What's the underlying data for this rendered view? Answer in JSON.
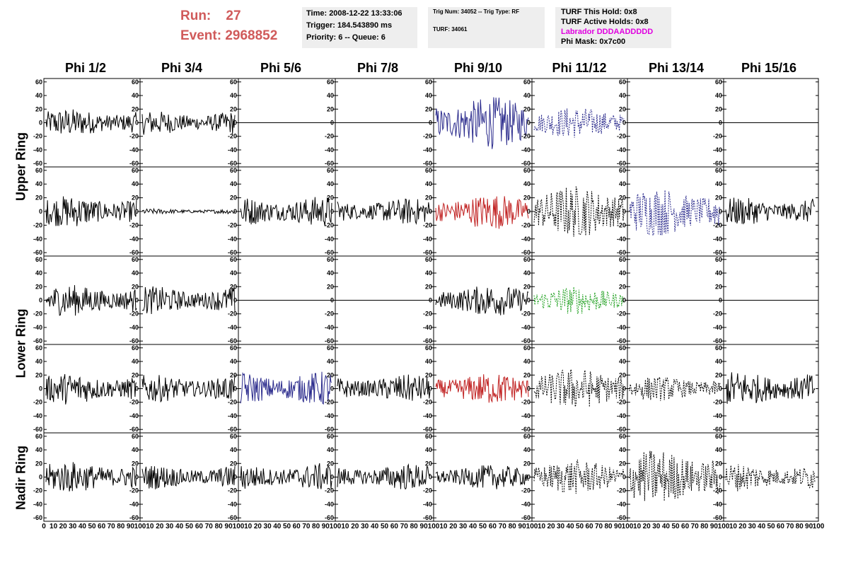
{
  "header": {
    "run_text": "Run:    27",
    "event_text": "Event: 2968852"
  },
  "info": {
    "time": "Time: 2008-12-22 13:33:06",
    "trigger": "Trigger: 184.543890 ms",
    "priority": "Priority: 6 -- Queue: 6",
    "trig_num": "Trig Num: 34052 -- Trig Type: RF",
    "turf": "TURF: 34061",
    "turf_this_hold": "TURF This Hold: 0x8",
    "turf_active_holds": "TURF Active Holds: 0x8",
    "labrador": "Labrador DDDAADDDDD",
    "phi_mask": "Phi Mask: 0x7c00"
  },
  "columns": [
    "Phi 1/2",
    "Phi 3/4",
    "Phi 5/6",
    "Phi 7/8",
    "Phi 9/10",
    "Phi 11/12",
    "Phi 13/14",
    "Phi 15/16"
  ],
  "rows": [
    "Upper Ring",
    "Lower Ring",
    "Nadir Ring"
  ],
  "axis": {
    "y_ticks": [
      "60",
      "40",
      "20",
      "0",
      "-20",
      "-40",
      "-60"
    ],
    "x_ticks_first": "0  10 20 30 40 50 60 70 80 90 100",
    "x_ticks": "10 20 30 40 50 60 70 80 90 100"
  },
  "colors": {
    "black": "#000000",
    "blue": "#2a2a8c",
    "red": "#c02020",
    "green": "#20a020",
    "header_red": "#d05a5a",
    "magenta": "#e000e0"
  },
  "chart_data": {
    "type": "line",
    "note_units": "amplitude vs sample",
    "xlim": [
      0,
      100
    ],
    "ylim": [
      -65,
      65
    ],
    "panels": [
      {
        "row": 0,
        "col": 0,
        "color": "black",
        "style": "solid",
        "amp": 16
      },
      {
        "row": 0,
        "col": 1,
        "color": "black",
        "style": "solid",
        "amp": 14
      },
      {
        "row": 0,
        "col": 2,
        "color": "black",
        "style": "flat",
        "amp": 0
      },
      {
        "row": 0,
        "col": 3,
        "color": "black",
        "style": "flat",
        "amp": 0
      },
      {
        "row": 0,
        "col": 4,
        "color": "blue",
        "style": "solid",
        "amp": 30
      },
      {
        "row": 0,
        "col": 5,
        "color": "blue",
        "style": "dashed",
        "amp": 18
      },
      {
        "row": 0,
        "col": 6,
        "color": "black",
        "style": "flat",
        "amp": 0
      },
      {
        "row": 0,
        "col": 7,
        "color": "black",
        "style": "flat",
        "amp": 0
      },
      {
        "row": 1,
        "col": 0,
        "color": "black",
        "style": "solid",
        "amp": 18
      },
      {
        "row": 1,
        "col": 1,
        "color": "black",
        "style": "solid",
        "amp": 3
      },
      {
        "row": 1,
        "col": 2,
        "color": "black",
        "style": "solid",
        "amp": 18
      },
      {
        "row": 1,
        "col": 3,
        "color": "black",
        "style": "solid",
        "amp": 15
      },
      {
        "row": 1,
        "col": 4,
        "color": "red",
        "style": "solid",
        "amp": 20
      },
      {
        "row": 1,
        "col": 5,
        "color": "black",
        "style": "dashed",
        "amp": 30
      },
      {
        "row": 1,
        "col": 6,
        "color": "blue",
        "style": "dashed",
        "amp": 28
      },
      {
        "row": 1,
        "col": 7,
        "color": "black",
        "style": "solid",
        "amp": 16
      },
      {
        "row": 2,
        "col": 0,
        "color": "black",
        "style": "solid",
        "amp": 18
      },
      {
        "row": 2,
        "col": 1,
        "color": "black",
        "style": "solid",
        "amp": 16
      },
      {
        "row": 2,
        "col": 2,
        "color": "black",
        "style": "flat",
        "amp": 0
      },
      {
        "row": 2,
        "col": 3,
        "color": "black",
        "style": "flat",
        "amp": 0
      },
      {
        "row": 2,
        "col": 4,
        "color": "black",
        "style": "solid",
        "amp": 18
      },
      {
        "row": 2,
        "col": 5,
        "color": "green",
        "style": "dashed",
        "amp": 16
      },
      {
        "row": 2,
        "col": 6,
        "color": "black",
        "style": "flat",
        "amp": 0
      },
      {
        "row": 2,
        "col": 7,
        "color": "black",
        "style": "flat",
        "amp": 0
      },
      {
        "row": 3,
        "col": 0,
        "color": "black",
        "style": "solid",
        "amp": 18
      },
      {
        "row": 3,
        "col": 1,
        "color": "black",
        "style": "solid",
        "amp": 16
      },
      {
        "row": 3,
        "col": 2,
        "color": "blue",
        "style": "solid",
        "amp": 20
      },
      {
        "row": 3,
        "col": 3,
        "color": "black",
        "style": "solid",
        "amp": 16
      },
      {
        "row": 3,
        "col": 4,
        "color": "red",
        "style": "solid",
        "amp": 18
      },
      {
        "row": 3,
        "col": 5,
        "color": "black",
        "style": "dashed",
        "amp": 24
      },
      {
        "row": 3,
        "col": 6,
        "color": "black",
        "style": "dashed",
        "amp": 14
      },
      {
        "row": 3,
        "col": 7,
        "color": "black",
        "style": "solid",
        "amp": 20
      },
      {
        "row": 4,
        "col": 0,
        "color": "black",
        "style": "solid",
        "amp": 18
      },
      {
        "row": 4,
        "col": 1,
        "color": "black",
        "style": "solid",
        "amp": 14
      },
      {
        "row": 4,
        "col": 2,
        "color": "black",
        "style": "solid",
        "amp": 16
      },
      {
        "row": 4,
        "col": 3,
        "color": "black",
        "style": "solid",
        "amp": 15
      },
      {
        "row": 4,
        "col": 4,
        "color": "black",
        "style": "solid",
        "amp": 14
      },
      {
        "row": 4,
        "col": 5,
        "color": "black",
        "style": "dashed",
        "amp": 20
      },
      {
        "row": 4,
        "col": 6,
        "color": "black",
        "style": "dashed",
        "amp": 32
      },
      {
        "row": 4,
        "col": 7,
        "color": "black",
        "style": "dashed",
        "amp": 16
      }
    ]
  }
}
